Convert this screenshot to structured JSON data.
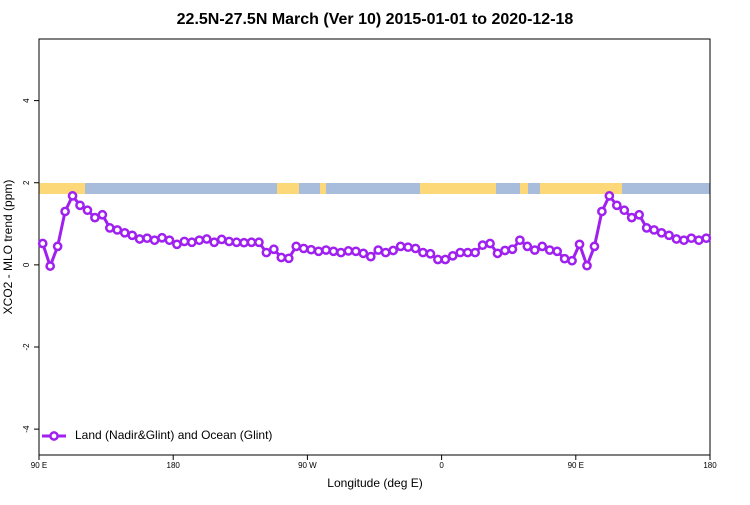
{
  "chart_data": {
    "type": "line",
    "title": "22.5N-27.5N March (Ver 10)   2015-01-01 to 2020-12-18",
    "x_label": "Longitude (deg E)",
    "y_label": "XCO2 - MLO trend (ppm)",
    "x": [
      92.5,
      97.5,
      102.5,
      107.5,
      112.5,
      117.5,
      122.5,
      127.5,
      132.5,
      137.5,
      142.5,
      147.5,
      152.5,
      157.5,
      162.5,
      167.5,
      172.5,
      177.5,
      182.5,
      187.5,
      192.5,
      197.5,
      202.5,
      207.5,
      212.5,
      217.5,
      222.5,
      227.5,
      232.5,
      237.5,
      242.5,
      247.5,
      252.5,
      257.5,
      262.5,
      267.5,
      272.5,
      277.5,
      282.5,
      287.5,
      292.5,
      297.5,
      302.5,
      307.5,
      312.5,
      317.5,
      322.5,
      327.5,
      332.5,
      337.5,
      342.5,
      347.5,
      352.5,
      357.5,
      362.5,
      367.5,
      372.5,
      377.5,
      382.5,
      387.5,
      392.5,
      397.5,
      402.5,
      407.5,
      412.5,
      417.5,
      422.5,
      427.5,
      432.5,
      437.5,
      442.5,
      447.5,
      452.5,
      457.5,
      462.5,
      467.5,
      472.5,
      477.5,
      482.5,
      487.5,
      492.5,
      497.5,
      502.5,
      507.5,
      512.5,
      517.5,
      522.5,
      527.5,
      532.5,
      537.5
    ],
    "series": [
      {
        "name": "Land (Nadir&Glint) and Ocean (Glint)",
        "color": "#a020f0",
        "values": [
          0.52,
          -0.03,
          0.45,
          1.3,
          1.68,
          1.45,
          1.33,
          1.15,
          1.22,
          0.9,
          0.85,
          0.78,
          0.72,
          0.63,
          0.65,
          0.6,
          0.66,
          0.6,
          0.5,
          0.57,
          0.55,
          0.6,
          0.63,
          0.55,
          0.62,
          0.57,
          0.55,
          0.54,
          0.55,
          0.55,
          0.3,
          0.38,
          0.18,
          0.16,
          0.45,
          0.4,
          0.37,
          0.33,
          0.36,
          0.33,
          0.3,
          0.34,
          0.33,
          0.28,
          0.2,
          0.36,
          0.3,
          0.35,
          0.45,
          0.43,
          0.4,
          0.3,
          0.27,
          0.13,
          0.13,
          0.22,
          0.3,
          0.3,
          0.3,
          0.48,
          0.52,
          0.28,
          0.35,
          0.38,
          0.6,
          0.45,
          0.36,
          0.45,
          0.36,
          0.33,
          0.15,
          0.1,
          0.5,
          -0.02,
          0.45,
          1.3,
          1.68,
          1.45,
          1.33,
          1.15,
          1.22,
          0.9,
          0.85,
          0.78,
          0.72,
          0.63,
          0.6,
          0.65,
          0.6,
          0.65
        ]
      }
    ],
    "xlim": [
      90,
      540
    ],
    "xticks": [
      {
        "value": 90,
        "label": "90 E"
      },
      180,
      {
        "value": 270,
        "label": "90 W"
      },
      {
        "value": 360,
        "label": "0"
      },
      {
        "value": 450,
        "label": "90 E"
      },
      {
        "value": 540,
        "label": "180"
      }
    ],
    "ylim": [
      -4.63,
      5.5
    ],
    "yticks": [
      -4,
      -2,
      0,
      2,
      4
    ],
    "legend": "bottomleft"
  }
}
